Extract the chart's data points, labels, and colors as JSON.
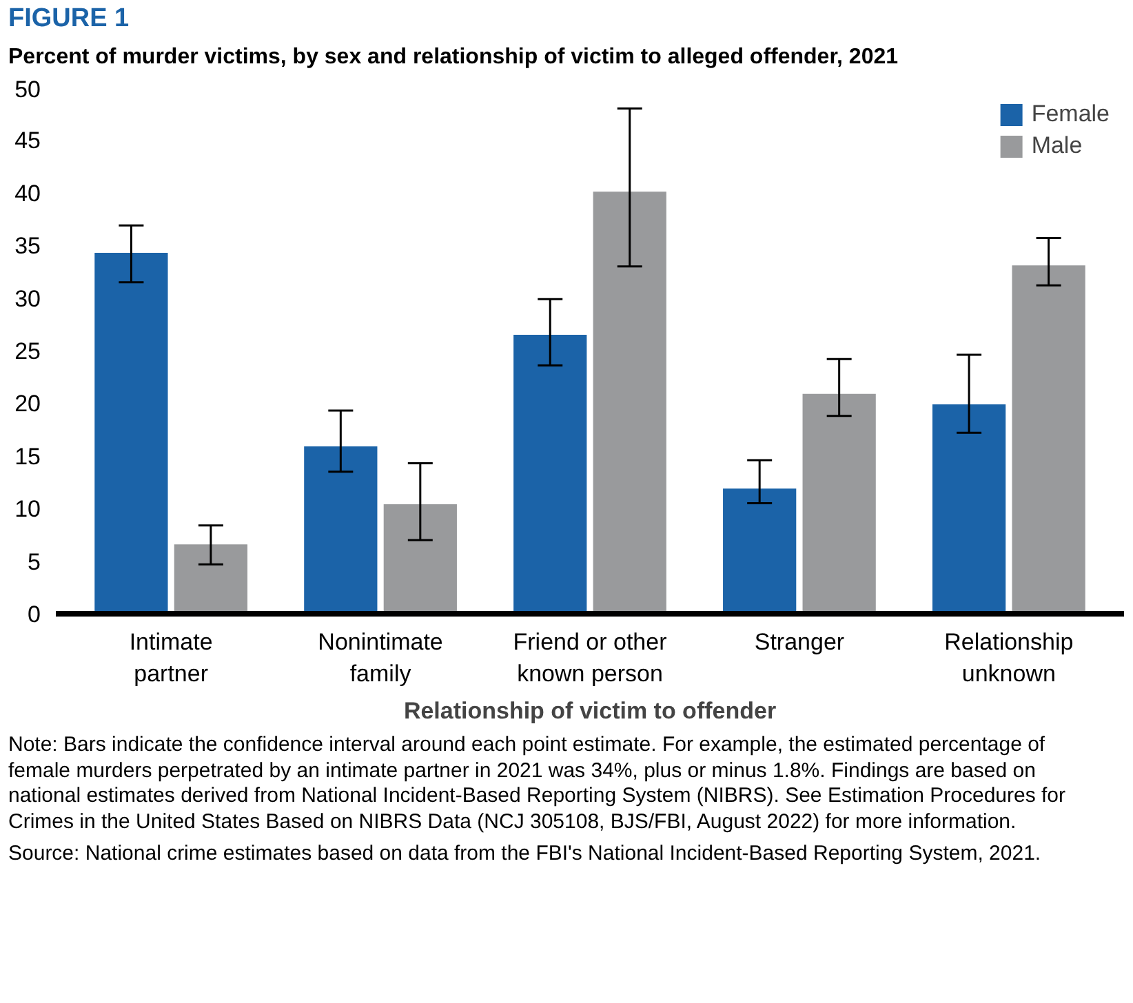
{
  "chart_data": {
    "type": "bar",
    "title": "FIGURE 1",
    "subtitle": "Percent of murder victims, by sex and relationship of victim to alleged offender, 2021",
    "xlabel": "Relationship of victim to offender",
    "categories": [
      "Intimate partner",
      "Nonintimate family",
      "Friend or other known person",
      "Stranger",
      "Relationship unknown"
    ],
    "series": [
      {
        "name": "Female",
        "color": "#1b63a8",
        "values": [
          34.3,
          15.9,
          26.5,
          11.9,
          19.9
        ],
        "errors": [
          [
            31.5,
            36.9
          ],
          [
            13.5,
            19.3
          ],
          [
            23.6,
            29.9
          ],
          [
            10.5,
            14.6
          ],
          [
            17.2,
            24.6
          ]
        ]
      },
      {
        "name": "Male",
        "color": "#999a9c",
        "values": [
          6.6,
          10.4,
          40.1,
          20.9,
          33.1
        ],
        "errors": [
          [
            4.7,
            8.4
          ],
          [
            7.0,
            14.3
          ],
          [
            33.0,
            48.0
          ],
          [
            18.8,
            24.2
          ],
          [
            31.2,
            35.7
          ]
        ]
      }
    ],
    "ylim": [
      0,
      50
    ],
    "yticks": [
      0,
      5,
      10,
      15,
      20,
      25,
      30,
      35,
      40,
      45,
      50
    ],
    "grid": false,
    "legend": "top right",
    "annotations": [
      "Note: Bars indicate the confidence interval around each point estimate. For example, the estimated percentage of female murders perpetrated by an intimate partner in 2021 was 34%, plus or minus 1.8%. Findings are based on national estimates derived from National Incident-Based Reporting System (NIBRS). See Estimation Procedures for Crimes in the United States Based on NIBRS Data (NCJ 305108, BJS/FBI, August 2022) for more information.",
      "Source: National crime estimates based on data from the FBI's National Incident-Based Reporting System, 2021."
    ]
  }
}
